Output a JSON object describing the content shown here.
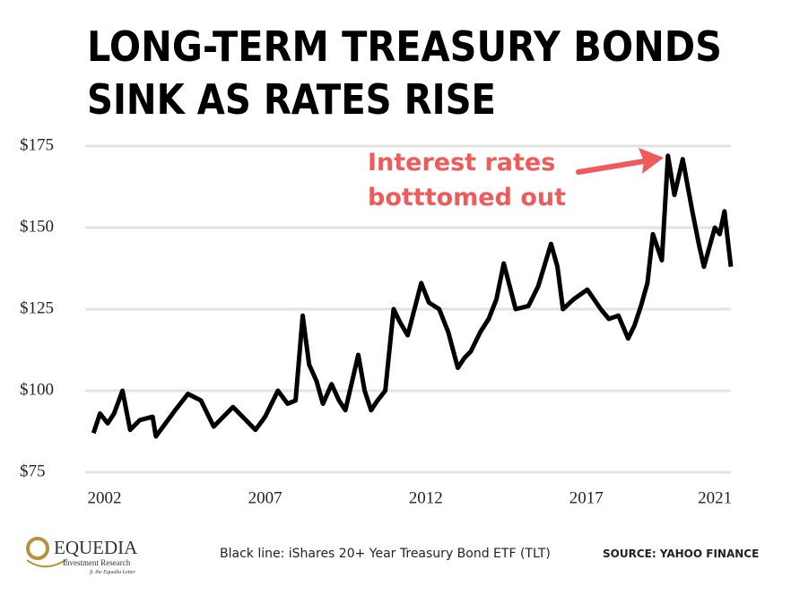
{
  "chart_data": {
    "type": "line",
    "title": [
      "LONG-TERM TREASURY BONDS",
      "SINK AS RATES RISE"
    ],
    "annotation": [
      "Interest rates",
      "botttomed out"
    ],
    "caption": "Black line: iShares 20+ Year Treasury Bond ETF (TLT)",
    "source": "SOURCE:  YAHOO FINANCE",
    "logo": {
      "name": "EQUEDIA",
      "subtitle": "Investment Research",
      "tagline": "ft. the Equedia Letter"
    },
    "color": "#000000",
    "grid": true,
    "xlim": [
      2001.4,
      2021.5
    ],
    "xticks": [
      2002,
      2007,
      2012,
      2017,
      2021
    ],
    "ylim": [
      75,
      175
    ],
    "yticks": [
      {
        "value": 75,
        "label": "$75"
      },
      {
        "value": 100,
        "label": "$100"
      },
      {
        "value": 125,
        "label": "$125"
      },
      {
        "value": 150,
        "label": "$150"
      },
      {
        "value": 175,
        "label": "$175"
      }
    ],
    "x": [
      2001.66,
      2001.86,
      2002.1,
      2002.3,
      2002.56,
      2002.8,
      2003.1,
      2003.5,
      2003.6,
      2003.9,
      2004.2,
      2004.6,
      2005.0,
      2005.4,
      2005.7,
      2006.0,
      2006.4,
      2006.7,
      2007.0,
      2007.4,
      2007.7,
      2007.95,
      2008.17,
      2008.37,
      2008.6,
      2008.8,
      2009.07,
      2009.3,
      2009.5,
      2009.9,
      2010.1,
      2010.3,
      2010.5,
      2010.74,
      2011.0,
      2011.2,
      2011.44,
      2011.86,
      2012.1,
      2012.42,
      2012.7,
      2013.0,
      2013.2,
      2013.4,
      2013.7,
      2013.96,
      2014.2,
      2014.43,
      2014.8,
      2015.2,
      2015.5,
      2015.9,
      2016.1,
      2016.27,
      2016.6,
      2017.03,
      2017.45,
      2017.7,
      2018.0,
      2018.3,
      2018.5,
      2018.7,
      2018.9,
      2019.07,
      2019.35,
      2019.54,
      2019.74,
      2020.0,
      2020.15,
      2020.3,
      2020.5,
      2020.66,
      2021.0,
      2021.15,
      2021.3,
      2021.5
    ],
    "values": [
      87,
      93,
      90,
      93,
      100,
      88,
      91,
      92,
      86,
      90,
      94,
      99,
      97,
      89,
      92,
      95,
      91,
      88,
      92,
      100,
      96,
      97,
      123,
      108,
      103,
      96,
      102,
      97,
      94,
      111,
      100,
      94,
      97,
      100,
      125,
      121,
      117,
      133,
      127,
      125,
      118,
      107,
      110,
      112,
      118,
      122,
      128,
      139,
      125,
      126,
      132,
      145,
      138,
      125,
      128,
      131,
      125,
      122,
      123,
      116,
      120,
      126,
      133,
      148,
      140,
      172,
      160,
      171,
      163,
      155,
      145,
      138,
      150,
      148,
      155,
      138
    ]
  }
}
